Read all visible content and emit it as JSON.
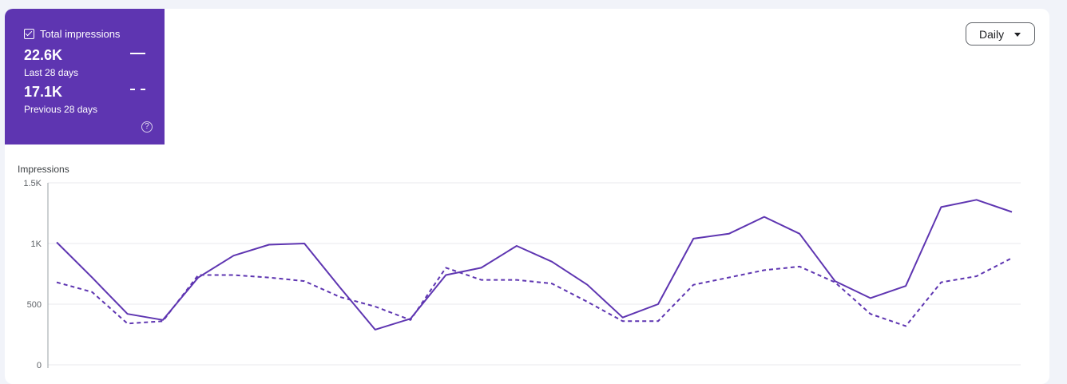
{
  "metric": {
    "title": "Total impressions",
    "current_value": "22.6K",
    "current_period": "Last 28 days",
    "previous_value": "17.1K",
    "previous_period": "Previous 28 days",
    "help_glyph": "?"
  },
  "granularity": {
    "selected": "Daily"
  },
  "colors": {
    "accent": "#5e35b1",
    "line": "#5e35b1",
    "grid": "#e8eaed",
    "axis_text": "#5f6368"
  },
  "chart_data": {
    "type": "line",
    "ylabel": "Impressions",
    "ylim": [
      0,
      1500
    ],
    "yticks": [
      {
        "value": 0,
        "label": "0"
      },
      {
        "value": 500,
        "label": "500"
      },
      {
        "value": 1000,
        "label": "1K"
      },
      {
        "value": 1500,
        "label": "1.5K"
      }
    ],
    "grid": true,
    "series": [
      {
        "name": "Last 28 days",
        "style": "solid",
        "values": [
          1010,
          720,
          420,
          370,
          720,
          900,
          990,
          1000,
          640,
          290,
          380,
          740,
          800,
          980,
          850,
          660,
          390,
          500,
          1040,
          1080,
          1220,
          1080,
          690,
          550,
          650,
          1300,
          1360,
          1260
        ]
      },
      {
        "name": "Previous 28 days",
        "style": "dashed",
        "values": [
          680,
          600,
          340,
          360,
          740,
          740,
          720,
          690,
          560,
          480,
          370,
          800,
          700,
          700,
          670,
          520,
          360,
          360,
          660,
          720,
          780,
          810,
          680,
          420,
          320,
          680,
          730,
          880
        ]
      }
    ]
  }
}
